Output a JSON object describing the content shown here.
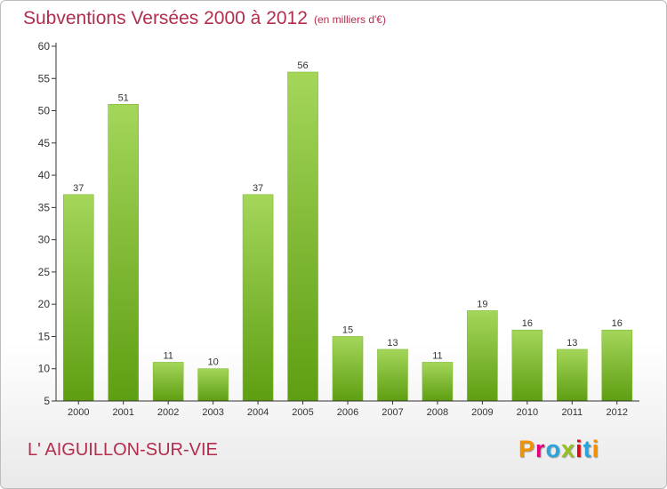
{
  "header": {
    "title": "Subventions Versées 2000 à 2012",
    "subtitle": "(en milliers d'€)"
  },
  "footer": {
    "commune": "L' AIGUILLON-SUR-VIE",
    "logo": "Proxiti",
    "logo_colors": [
      "#f39200",
      "#e6007e",
      "#2aa4db",
      "#95c11f",
      "#e30613",
      "#2aa4db",
      "#f39200"
    ]
  },
  "colors": {
    "bar_top": "#a4d65a",
    "bar_bottom": "#5e9e12",
    "axis": "#333333",
    "grid": "#e6e6e6",
    "title": "#b32d4d"
  },
  "chart_data": {
    "type": "bar",
    "categories": [
      "2000",
      "2001",
      "2002",
      "2003",
      "2004",
      "2005",
      "2006",
      "2007",
      "2008",
      "2009",
      "2010",
      "2011",
      "2012"
    ],
    "values": [
      37,
      51,
      11,
      10,
      37,
      56,
      15,
      13,
      11,
      19,
      16,
      13,
      16
    ],
    "ylim": [
      5,
      60
    ],
    "yticks": [
      5,
      10,
      15,
      20,
      25,
      30,
      35,
      40,
      45,
      50,
      55,
      60
    ],
    "grid": false,
    "data_labels": true
  }
}
